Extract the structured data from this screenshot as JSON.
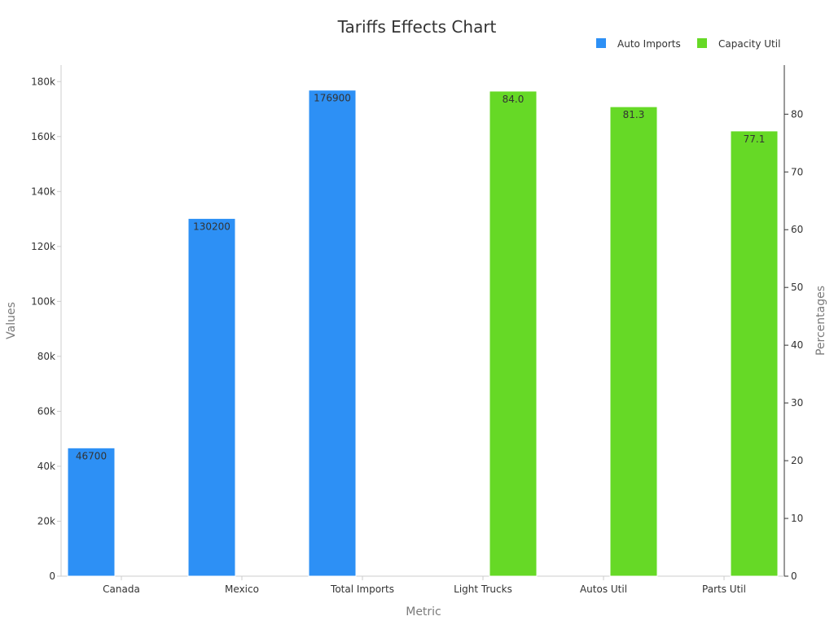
{
  "chart_data": {
    "type": "bar",
    "title": "Tariffs Effects Chart",
    "xlabel": "Metric",
    "ylabel": "Values",
    "y2label": "Percentages",
    "categories": [
      "Canada",
      "Mexico",
      "Total Imports",
      "Light Trucks",
      "Autos Util",
      "Parts Util"
    ],
    "ylim": [
      0,
      186000
    ],
    "y2lim": [
      0,
      88.5
    ],
    "y_ticks": [
      0,
      20000,
      40000,
      60000,
      80000,
      100000,
      120000,
      140000,
      160000,
      180000
    ],
    "y_tick_labels": [
      "0",
      "20k",
      "40k",
      "60k",
      "80k",
      "100k",
      "120k",
      "140k",
      "160k",
      "180k"
    ],
    "y2_ticks": [
      0,
      10,
      20,
      30,
      40,
      50,
      60,
      70,
      80
    ],
    "y2_tick_labels": [
      "0",
      "10",
      "20",
      "30",
      "40",
      "50",
      "60",
      "70",
      "80"
    ],
    "legend_position": "top-right",
    "series": [
      {
        "name": "Auto Imports",
        "axis": "left",
        "color": "#2d90f5",
        "values": [
          46700,
          130200,
          176900,
          null,
          null,
          null
        ],
        "labels": [
          "46700",
          "130200",
          "176900",
          "",
          "",
          ""
        ]
      },
      {
        "name": "Capacity Util",
        "axis": "right",
        "color": "#66d926",
        "values": [
          null,
          null,
          null,
          84.0,
          81.3,
          77.1
        ],
        "labels": [
          "",
          "",
          "",
          "84.0",
          "81.3",
          "77.1"
        ]
      }
    ]
  }
}
